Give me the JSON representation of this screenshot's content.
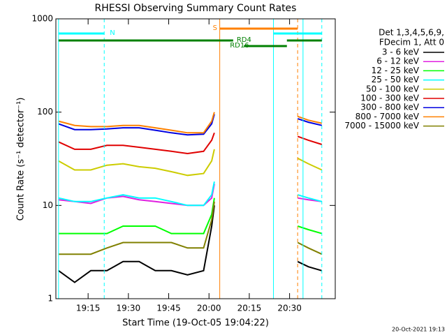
{
  "chart_data": {
    "type": "line",
    "title": "RHESSI Observing Summary Count Rates",
    "x_label": "Start Time (19-Oct-05 19:04:22)",
    "y_label": "Count Rate (s⁻¹ detector⁻¹)",
    "legend_header": [
      "Det 1,3,4,5,6,9,",
      "FDecim 1, Att 0"
    ],
    "footer": "20-Oct-2021 19:13",
    "log_y": true,
    "legend": "right",
    "xlim": [
      "19:03",
      "20:47"
    ],
    "xticks": [
      "19:15",
      "19:30",
      "19:45",
      "20:00",
      "20:15",
      "20:30"
    ],
    "ylim": [
      1,
      1000
    ],
    "yticks": [
      1,
      10,
      100,
      1000
    ],
    "x": [
      "19:04",
      "19:10",
      "19:16",
      "19:22",
      "19:28",
      "19:34",
      "19:40",
      "19:46",
      "19:52",
      "19:58",
      "20:01",
      "20:02",
      "20:20",
      "20:33",
      "20:37",
      "20:42"
    ],
    "series": [
      {
        "name": "3 - 6 keV",
        "color": "#000000",
        "values": [
          2,
          1.5,
          2,
          2,
          2.5,
          2.5,
          2,
          2,
          1.8,
          2,
          6,
          10,
          null,
          2.5,
          2.2,
          2
        ]
      },
      {
        "name": "6 - 12 keV",
        "color": "#e020e0",
        "values": [
          11.5,
          11,
          10.5,
          12,
          12.5,
          11.5,
          11,
          10.5,
          10,
          10,
          12,
          17,
          null,
          12,
          11.5,
          11
        ]
      },
      {
        "name": "12 - 25 keV",
        "color": "#00ff00",
        "values": [
          5,
          5,
          5,
          5,
          6,
          6,
          6,
          5,
          5,
          5,
          8,
          12,
          null,
          6,
          5.5,
          5
        ]
      },
      {
        "name": "25 - 50 keV",
        "color": "#00ffff",
        "values": [
          12,
          11,
          11,
          12,
          13,
          12,
          12,
          11,
          10,
          10,
          13,
          18,
          null,
          13,
          12,
          11
        ]
      },
      {
        "name": "50 - 100 keV",
        "color": "#cccc00",
        "values": [
          30,
          24,
          24,
          27,
          28,
          26,
          25,
          23,
          21,
          22,
          30,
          40,
          null,
          32,
          28,
          24
        ]
      },
      {
        "name": "100 - 300 keV",
        "color": "#e00000",
        "values": [
          48,
          40,
          40,
          44,
          44,
          42,
          40,
          38,
          36,
          38,
          50,
          60,
          null,
          55,
          50,
          45
        ]
      },
      {
        "name": "300 - 800 keV",
        "color": "#0000e0",
        "values": [
          75,
          65,
          65,
          66,
          68,
          68,
          64,
          60,
          57,
          58,
          75,
          95,
          null,
          85,
          78,
          72
        ]
      },
      {
        "name": "800 - 7000 keV",
        "color": "#ff8000",
        "values": [
          80,
          72,
          70,
          70,
          72,
          72,
          68,
          64,
          60,
          60,
          80,
          100,
          null,
          90,
          82,
          76
        ]
      },
      {
        "name": "7000 - 15000 keV",
        "color": "#808000",
        "values": [
          3,
          3,
          3,
          3.5,
          4,
          4,
          4,
          4,
          3.5,
          3.5,
          7,
          11,
          null,
          4,
          3.5,
          3
        ]
      }
    ],
    "vlines": [
      {
        "x": "19:04",
        "color": "#00ffff",
        "dash": false
      },
      {
        "x": "19:21",
        "color": "#00ffff",
        "dash": true
      },
      {
        "x": "20:04",
        "color": "#ff8000",
        "dash": false
      },
      {
        "x": "20:24",
        "color": "#00ffff",
        "dash": false
      },
      {
        "x": "20:33",
        "color": "#ff8000",
        "dash": true
      },
      {
        "x": "20:35",
        "color": "#00ffff",
        "dash": false
      },
      {
        "x": "20:42",
        "color": "#00ffff",
        "dash": true
      }
    ],
    "flags": [
      {
        "label": "N",
        "color": "#00ffff",
        "segments": [
          [
            "19:04",
            "19:21"
          ],
          [
            "20:24",
            "20:42"
          ]
        ]
      },
      {
        "label": "S",
        "color": "#ff8000",
        "segments": [
          [
            "20:04",
            "20:33"
          ]
        ]
      },
      {
        "label": "RD4",
        "color": "#008000",
        "segments": [
          [
            "19:04",
            "20:09"
          ],
          [
            "20:29",
            "20:42"
          ]
        ]
      },
      {
        "label": "RD16",
        "color": "#008000",
        "segments": [
          [
            "20:13",
            "20:29"
          ]
        ]
      }
    ]
  }
}
